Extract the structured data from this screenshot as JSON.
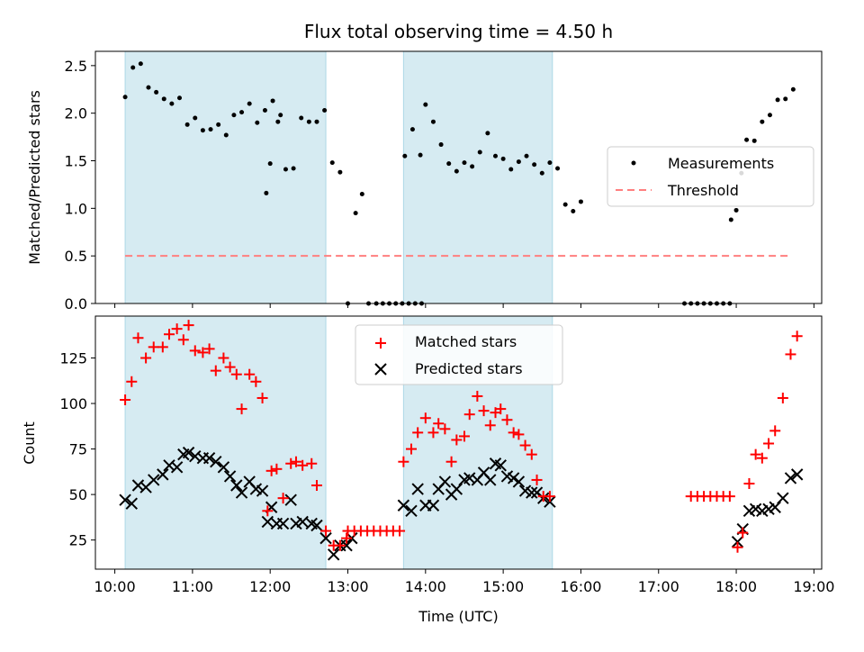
{
  "chart_data": [
    {
      "type": "scatter",
      "title": "Flux total observing time = 4.50 h",
      "xlabel": "",
      "ylabel": "Matched/Predicted stars",
      "ylim": [
        0,
        2.65
      ],
      "yticks": [
        "0.0",
        "0.5",
        "1.0",
        "1.5",
        "2.0",
        "2.5"
      ],
      "legend_position": "center-right",
      "shaded_periods": [
        {
          "start": "10:08",
          "end": "12:43"
        },
        {
          "start": "13:43",
          "end": "15:38"
        }
      ],
      "threshold": {
        "value": 0.5,
        "start": "10:08",
        "end": "18:40",
        "color": "#ff7f7f"
      },
      "series": [
        {
          "name": "Measurements",
          "color": "#000000",
          "points": [
            [
              "10:08",
              2.17
            ],
            [
              "10:14",
              2.48
            ],
            [
              "10:20",
              2.52
            ],
            [
              "10:26",
              2.27
            ],
            [
              "10:32",
              2.22
            ],
            [
              "10:38",
              2.15
            ],
            [
              "10:44",
              2.1
            ],
            [
              "10:50",
              2.16
            ],
            [
              "10:56",
              1.88
            ],
            [
              "11:02",
              1.95
            ],
            [
              "11:08",
              1.82
            ],
            [
              "11:14",
              1.83
            ],
            [
              "11:20",
              1.88
            ],
            [
              "11:26",
              1.77
            ],
            [
              "11:32",
              1.98
            ],
            [
              "11:38",
              2.01
            ],
            [
              "11:44",
              2.1
            ],
            [
              "11:50",
              1.9
            ],
            [
              "11:56",
              2.03
            ],
            [
              "12:02",
              2.13
            ],
            [
              "12:08",
              1.98
            ],
            [
              "11:57",
              1.16
            ],
            [
              "12:00",
              1.47
            ],
            [
              "12:06",
              1.91
            ],
            [
              "12:12",
              1.41
            ],
            [
              "12:18",
              1.42
            ],
            [
              "12:24",
              1.95
            ],
            [
              "12:30",
              1.91
            ],
            [
              "12:36",
              1.91
            ],
            [
              "12:42",
              2.03
            ],
            [
              "12:48",
              1.48
            ],
            [
              "12:54",
              1.38
            ],
            [
              "13:00",
              0.0
            ],
            [
              "13:06",
              0.95
            ],
            [
              "13:11",
              1.15
            ],
            [
              "13:16",
              0.0
            ],
            [
              "13:22",
              0.0
            ],
            [
              "13:27",
              0.0
            ],
            [
              "13:32",
              0.0
            ],
            [
              "13:37",
              0.0
            ],
            [
              "13:42",
              0.0
            ],
            [
              "13:47",
              0.0
            ],
            [
              "13:52",
              0.0
            ],
            [
              "13:57",
              0.0
            ],
            [
              "13:44",
              1.55
            ],
            [
              "13:50",
              1.83
            ],
            [
              "13:56",
              1.56
            ],
            [
              "14:00",
              2.09
            ],
            [
              "14:06",
              1.91
            ],
            [
              "14:12",
              1.67
            ],
            [
              "14:18",
              1.47
            ],
            [
              "14:24",
              1.39
            ],
            [
              "14:30",
              1.48
            ],
            [
              "14:36",
              1.44
            ],
            [
              "14:42",
              1.59
            ],
            [
              "14:48",
              1.79
            ],
            [
              "14:54",
              1.55
            ],
            [
              "15:00",
              1.52
            ],
            [
              "15:06",
              1.41
            ],
            [
              "15:12",
              1.49
            ],
            [
              "15:18",
              1.55
            ],
            [
              "15:24",
              1.46
            ],
            [
              "15:30",
              1.37
            ],
            [
              "15:36",
              1.48
            ],
            [
              "15:42",
              1.42
            ],
            [
              "15:48",
              1.04
            ],
            [
              "15:54",
              0.97
            ],
            [
              "16:00",
              1.07
            ],
            [
              "17:20",
              0.0
            ],
            [
              "17:25",
              0.0
            ],
            [
              "17:30",
              0.0
            ],
            [
              "17:35",
              0.0
            ],
            [
              "17:40",
              0.0
            ],
            [
              "17:45",
              0.0
            ],
            [
              "17:50",
              0.0
            ],
            [
              "17:55",
              0.0
            ],
            [
              "17:56",
              0.88
            ],
            [
              "18:00",
              0.98
            ],
            [
              "18:04",
              1.37
            ],
            [
              "18:08",
              1.72
            ],
            [
              "18:14",
              1.71
            ],
            [
              "18:20",
              1.91
            ],
            [
              "18:26",
              1.98
            ],
            [
              "18:32",
              2.14
            ],
            [
              "18:38",
              2.15
            ],
            [
              "18:44",
              2.25
            ]
          ]
        },
        {
          "name": "Threshold",
          "color": "#ff7f7f",
          "style": "dashed"
        }
      ]
    },
    {
      "type": "scatter",
      "title": "",
      "xlabel": "Time (UTC)",
      "ylabel": "Count",
      "ylim": [
        9,
        148
      ],
      "yticks": [
        "25",
        "50",
        "75",
        "100",
        "125"
      ],
      "xticks": [
        "10:00",
        "11:00",
        "12:00",
        "13:00",
        "14:00",
        "15:00",
        "16:00",
        "17:00",
        "18:00",
        "19:00"
      ],
      "legend_position": "top-center",
      "shaded_periods": [
        {
          "start": "10:08",
          "end": "12:43"
        },
        {
          "start": "13:43",
          "end": "15:38"
        }
      ],
      "series": [
        {
          "name": "Matched stars",
          "color": "#ff0000",
          "points": [
            [
              "10:08",
              102
            ],
            [
              "10:13",
              112
            ],
            [
              "10:18",
              136
            ],
            [
              "10:24",
              125
            ],
            [
              "10:30",
              131
            ],
            [
              "10:37",
              131
            ],
            [
              "10:42",
              138
            ],
            [
              "10:48",
              141
            ],
            [
              "10:53",
              135
            ],
            [
              "10:57",
              143
            ],
            [
              "11:02",
              129
            ],
            [
              "11:08",
              128
            ],
            [
              "11:13",
              130
            ],
            [
              "11:18",
              118
            ],
            [
              "11:24",
              125
            ],
            [
              "11:29",
              120
            ],
            [
              "11:34",
              116
            ],
            [
              "11:38",
              97
            ],
            [
              "11:44",
              116
            ],
            [
              "11:49",
              112
            ],
            [
              "11:54",
              103
            ],
            [
              "11:58",
              41
            ],
            [
              "12:01",
              63
            ],
            [
              "12:05",
              64
            ],
            [
              "12:10",
              48
            ],
            [
              "12:16",
              67
            ],
            [
              "12:20",
              68
            ],
            [
              "12:25",
              66
            ],
            [
              "12:32",
              67
            ],
            [
              "12:36",
              55
            ],
            [
              "12:43",
              30
            ],
            [
              "12:49",
              22
            ],
            [
              "12:54",
              22
            ],
            [
              "12:59",
              26
            ],
            [
              "13:00",
              30
            ],
            [
              "13:05",
              30
            ],
            [
              "13:10",
              30
            ],
            [
              "13:15",
              30
            ],
            [
              "13:20",
              30
            ],
            [
              "13:25",
              30
            ],
            [
              "13:30",
              30
            ],
            [
              "13:35",
              30
            ],
            [
              "13:40",
              30
            ],
            [
              "13:43",
              68
            ],
            [
              "13:49",
              75
            ],
            [
              "13:54",
              84
            ],
            [
              "14:00",
              92
            ],
            [
              "14:06",
              84
            ],
            [
              "14:10",
              89
            ],
            [
              "14:15",
              86
            ],
            [
              "14:20",
              68
            ],
            [
              "14:24",
              80
            ],
            [
              "14:30",
              82
            ],
            [
              "14:34",
              94
            ],
            [
              "14:40",
              104
            ],
            [
              "14:45",
              96
            ],
            [
              "14:50",
              88
            ],
            [
              "14:54",
              95
            ],
            [
              "14:58",
              97
            ],
            [
              "15:03",
              91
            ],
            [
              "15:08",
              84
            ],
            [
              "15:12",
              83
            ],
            [
              "15:17",
              77
            ],
            [
              "15:22",
              72
            ],
            [
              "15:26",
              58
            ],
            [
              "15:31",
              49
            ],
            [
              "15:36",
              49
            ],
            [
              "17:25",
              49
            ],
            [
              "17:30",
              49
            ],
            [
              "17:35",
              49
            ],
            [
              "17:40",
              49
            ],
            [
              "17:45",
              49
            ],
            [
              "17:50",
              49
            ],
            [
              "17:55",
              49
            ],
            [
              "18:01",
              21
            ],
            [
              "18:05",
              29
            ],
            [
              "18:10",
              56
            ],
            [
              "18:15",
              72
            ],
            [
              "18:20",
              70
            ],
            [
              "18:25",
              78
            ],
            [
              "18:30",
              85
            ],
            [
              "18:36",
              103
            ],
            [
              "18:42",
              127
            ],
            [
              "18:47",
              137
            ]
          ]
        },
        {
          "name": "Predicted stars",
          "color": "#000000",
          "points": [
            [
              "10:08",
              47
            ],
            [
              "10:13",
              45
            ],
            [
              "10:18",
              55
            ],
            [
              "10:24",
              54
            ],
            [
              "10:30",
              58
            ],
            [
              "10:37",
              61
            ],
            [
              "10:42",
              66
            ],
            [
              "10:48",
              65
            ],
            [
              "10:53",
              72
            ],
            [
              "10:57",
              73
            ],
            [
              "11:02",
              71
            ],
            [
              "11:08",
              70
            ],
            [
              "11:13",
              70
            ],
            [
              "11:18",
              68
            ],
            [
              "11:24",
              65
            ],
            [
              "11:29",
              60
            ],
            [
              "11:34",
              55
            ],
            [
              "11:38",
              51
            ],
            [
              "11:44",
              57
            ],
            [
              "11:49",
              53
            ],
            [
              "11:54",
              52
            ],
            [
              "11:58",
              35
            ],
            [
              "12:01",
              43
            ],
            [
              "12:05",
              34
            ],
            [
              "12:10",
              34
            ],
            [
              "12:16",
              47
            ],
            [
              "12:20",
              34
            ],
            [
              "12:25",
              35
            ],
            [
              "12:32",
              34
            ],
            [
              "12:36",
              33
            ],
            [
              "12:43",
              26
            ],
            [
              "12:49",
              17
            ],
            [
              "12:54",
              22
            ],
            [
              "12:59",
              22
            ],
            [
              "13:03",
              26
            ],
            [
              "13:43",
              44
            ],
            [
              "13:49",
              41
            ],
            [
              "13:54",
              53
            ],
            [
              "14:00",
              44
            ],
            [
              "14:06",
              44
            ],
            [
              "14:10",
              53
            ],
            [
              "14:15",
              57
            ],
            [
              "14:20",
              50
            ],
            [
              "14:24",
              53
            ],
            [
              "14:30",
              58
            ],
            [
              "14:34",
              59
            ],
            [
              "14:40",
              58
            ],
            [
              "14:45",
              62
            ],
            [
              "14:50",
              58
            ],
            [
              "14:54",
              67
            ],
            [
              "14:58",
              66
            ],
            [
              "15:03",
              60
            ],
            [
              "15:08",
              59
            ],
            [
              "15:12",
              57
            ],
            [
              "15:17",
              52
            ],
            [
              "15:22",
              51
            ],
            [
              "15:26",
              51
            ],
            [
              "15:31",
              48
            ],
            [
              "15:36",
              46
            ],
            [
              "18:01",
              24
            ],
            [
              "18:05",
              31
            ],
            [
              "18:10",
              41
            ],
            [
              "18:15",
              42
            ],
            [
              "18:20",
              41
            ],
            [
              "18:25",
              42
            ],
            [
              "18:30",
              43
            ],
            [
              "18:36",
              48
            ],
            [
              "18:42",
              59
            ],
            [
              "18:47",
              61
            ]
          ]
        }
      ]
    }
  ]
}
